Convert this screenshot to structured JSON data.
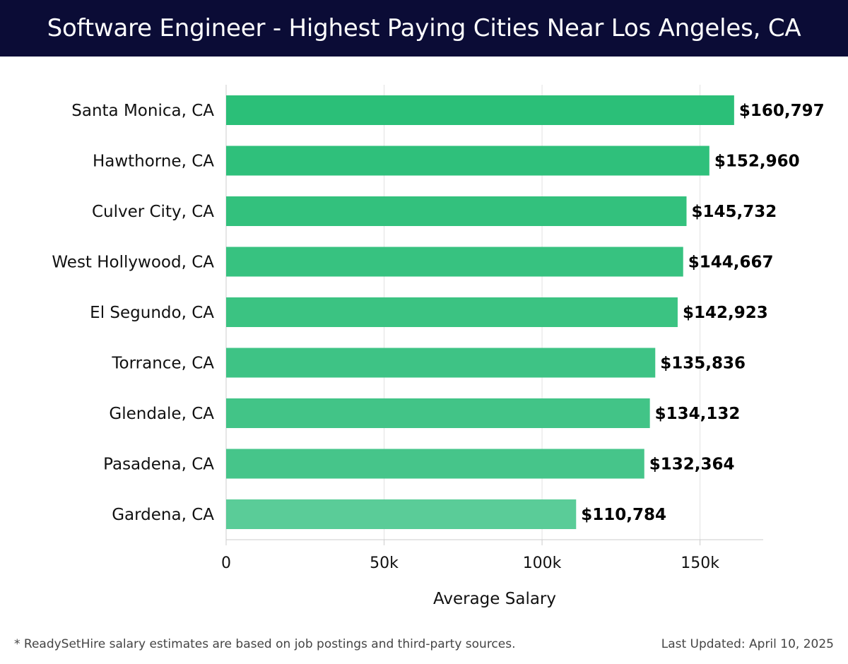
{
  "header": {
    "title": "Software Engineer - Highest Paying Cities Near Los Angeles, CA"
  },
  "chart_data": {
    "type": "bar",
    "orientation": "horizontal",
    "title": "Software Engineer - Highest Paying Cities Near Los Angeles, CA",
    "xlabel": "Average Salary",
    "ylabel": "",
    "xlim": [
      0,
      170000
    ],
    "x_ticks": [
      0,
      50000,
      100000,
      150000
    ],
    "x_tick_labels": [
      "0",
      "50k",
      "100k",
      "150k"
    ],
    "grid": "vertical",
    "categories": [
      "Santa Monica, CA",
      "Hawthorne, CA",
      "Culver City, CA",
      "West Hollywood, CA",
      "El Segundo, CA",
      "Torrance, CA",
      "Glendale, CA",
      "Pasadena, CA",
      "Gardena, CA"
    ],
    "values": [
      160797,
      152960,
      145732,
      144667,
      142923,
      135836,
      134132,
      132364,
      110784
    ],
    "value_labels": [
      "$160,797",
      "$152,960",
      "$145,732",
      "$144,667",
      "$142,923",
      "$135,836",
      "$134,132",
      "$132,364",
      "$110,784"
    ],
    "colors": {
      "bar_start": "#2bbf78",
      "bar_end": "#5acc98",
      "grid": "#e2e2e2",
      "axis": "#cccccc",
      "text": "#111111"
    }
  },
  "footer": {
    "note": "* ReadySetHire salary estimates are based on job postings and third-party sources.",
    "last_updated": "Last Updated: April 10, 2025"
  },
  "colors": {
    "header_bg": "#0b0c36",
    "header_text": "#ffffff"
  }
}
